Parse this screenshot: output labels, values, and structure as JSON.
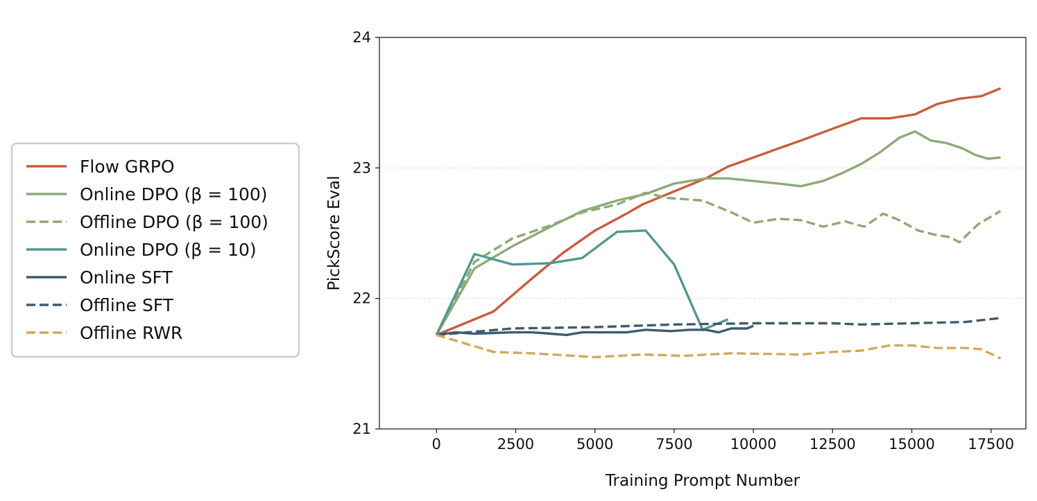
{
  "chart_data": {
    "type": "line",
    "title": "",
    "xlabel": "Training Prompt Number",
    "ylabel": "PickScore Eval",
    "xlim": [
      -1800,
      18600
    ],
    "ylim": [
      21,
      24
    ],
    "xticks": [
      0,
      2500,
      5000,
      7500,
      10000,
      12500,
      15000,
      17500
    ],
    "yticks": [
      21,
      22,
      23,
      24
    ],
    "grid": "horizontal dashed",
    "legend_position": "left, outside plot",
    "series": [
      {
        "name": "Flow GRPO",
        "color": "#CD5A3C",
        "style": "solid",
        "points": [
          [
            0,
            21.72
          ],
          [
            1800,
            21.9
          ],
          [
            3000,
            22.15
          ],
          [
            4000,
            22.35
          ],
          [
            5000,
            22.52
          ],
          [
            6000,
            22.65
          ],
          [
            6500,
            22.72
          ],
          [
            7500,
            22.82
          ],
          [
            8500,
            22.92
          ],
          [
            9200,
            23.01
          ],
          [
            10000,
            23.08
          ],
          [
            10800,
            23.15
          ],
          [
            11500,
            23.21
          ],
          [
            12500,
            23.3
          ],
          [
            13400,
            23.38
          ],
          [
            14300,
            23.38
          ],
          [
            15100,
            23.41
          ],
          [
            15800,
            23.49
          ],
          [
            16500,
            23.53
          ],
          [
            17200,
            23.55
          ],
          [
            17800,
            23.61
          ]
        ]
      },
      {
        "name": "Online DPO (β = 100)",
        "color": "#8DAA75",
        "style": "solid",
        "points": [
          [
            0,
            21.72
          ],
          [
            1200,
            22.23
          ],
          [
            2400,
            22.4
          ],
          [
            3600,
            22.55
          ],
          [
            4600,
            22.67
          ],
          [
            5700,
            22.75
          ],
          [
            6600,
            22.8
          ],
          [
            7500,
            22.88
          ],
          [
            8500,
            22.92
          ],
          [
            9200,
            22.92
          ],
          [
            10000,
            22.9
          ],
          [
            10800,
            22.88
          ],
          [
            11500,
            22.86
          ],
          [
            12200,
            22.9
          ],
          [
            12800,
            22.96
          ],
          [
            13400,
            23.03
          ],
          [
            14000,
            23.12
          ],
          [
            14600,
            23.23
          ],
          [
            15100,
            23.28
          ],
          [
            15600,
            23.21
          ],
          [
            16100,
            23.19
          ],
          [
            16600,
            23.15
          ],
          [
            17000,
            23.1
          ],
          [
            17400,
            23.07
          ],
          [
            17800,
            23.08
          ]
        ]
      },
      {
        "name": "Offline DPO (β = 100)",
        "color": "#8DAA75",
        "style": "dashed",
        "points": [
          [
            0,
            21.72
          ],
          [
            1200,
            22.28
          ],
          [
            2400,
            22.46
          ],
          [
            3600,
            22.56
          ],
          [
            4600,
            22.66
          ],
          [
            5700,
            22.72
          ],
          [
            6600,
            22.81
          ],
          [
            7300,
            22.77
          ],
          [
            8400,
            22.75
          ],
          [
            9300,
            22.66
          ],
          [
            10000,
            22.58
          ],
          [
            10800,
            22.61
          ],
          [
            11500,
            22.6
          ],
          [
            12200,
            22.55
          ],
          [
            12900,
            22.59
          ],
          [
            13500,
            22.55
          ],
          [
            14100,
            22.65
          ],
          [
            14600,
            22.6
          ],
          [
            15200,
            22.52
          ],
          [
            15700,
            22.49
          ],
          [
            16200,
            22.47
          ],
          [
            16500,
            22.43
          ],
          [
            17100,
            22.57
          ],
          [
            17800,
            22.67
          ]
        ]
      },
      {
        "name": "Online DPO (β = 10)",
        "color": "#4E9A90",
        "style": "solid",
        "points": [
          [
            0,
            21.72
          ],
          [
            1200,
            22.34
          ],
          [
            2400,
            22.26
          ],
          [
            3600,
            22.27
          ],
          [
            4600,
            22.31
          ],
          [
            5700,
            22.51
          ],
          [
            6600,
            22.52
          ],
          [
            7500,
            22.26
          ],
          [
            8400,
            21.76
          ],
          [
            9200,
            21.84
          ]
        ]
      },
      {
        "name": "Online SFT",
        "color": "#3F5A6D",
        "style": "solid",
        "points": [
          [
            0,
            21.72
          ],
          [
            600,
            21.74
          ],
          [
            1200,
            21.73
          ],
          [
            2400,
            21.74
          ],
          [
            3000,
            21.74
          ],
          [
            3600,
            21.73
          ],
          [
            4100,
            21.72
          ],
          [
            4600,
            21.74
          ],
          [
            5200,
            21.74
          ],
          [
            6000,
            21.74
          ],
          [
            6600,
            21.76
          ],
          [
            7400,
            21.75
          ],
          [
            8000,
            21.76
          ],
          [
            8500,
            21.76
          ],
          [
            8900,
            21.74
          ],
          [
            9300,
            21.77
          ],
          [
            9800,
            21.77
          ],
          [
            10000,
            21.79
          ]
        ]
      },
      {
        "name": "Offline SFT",
        "color": "#3F5A6D",
        "style": "dashed",
        "points": [
          [
            0,
            21.72
          ],
          [
            2400,
            21.77
          ],
          [
            5000,
            21.78
          ],
          [
            7500,
            21.8
          ],
          [
            10000,
            21.81
          ],
          [
            12500,
            21.81
          ],
          [
            13400,
            21.8
          ],
          [
            15000,
            21.81
          ],
          [
            16700,
            21.82
          ],
          [
            17800,
            21.85
          ]
        ]
      },
      {
        "name": "Offline RWR",
        "color": "#D4A85A",
        "style": "dashed",
        "points": [
          [
            0,
            21.72
          ],
          [
            1800,
            21.59
          ],
          [
            3000,
            21.58
          ],
          [
            5000,
            21.55
          ],
          [
            6500,
            21.57
          ],
          [
            7800,
            21.56
          ],
          [
            9300,
            21.58
          ],
          [
            11500,
            21.57
          ],
          [
            12500,
            21.59
          ],
          [
            13400,
            21.6
          ],
          [
            14300,
            21.64
          ],
          [
            15000,
            21.64
          ],
          [
            15800,
            21.62
          ],
          [
            16700,
            21.62
          ],
          [
            17200,
            21.61
          ],
          [
            17800,
            21.54
          ]
        ]
      }
    ]
  }
}
